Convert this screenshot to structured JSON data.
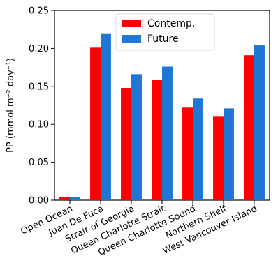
{
  "chart_data": {
    "type": "bar",
    "title": "",
    "xlabel": "",
    "ylabel": "PP (mmol m⁻² day⁻¹)",
    "ylim": [
      0,
      0.25
    ],
    "yticks": [
      0.0,
      0.05,
      0.1,
      0.15,
      0.2,
      0.25
    ],
    "ytick_labels": [
      "0.00",
      "0.05",
      "0.10",
      "0.15",
      "0.20",
      "0.25"
    ],
    "grid": false,
    "legend_position": "top-center",
    "categories": [
      "Open Ocean",
      "Juan De Fuca",
      "Strait of Georgia",
      "Queen Charlotte Strait",
      "Queen Charlotte Sound",
      "Northern Shelf",
      "West Vancouver Island"
    ],
    "series": [
      {
        "name": "Contemp.",
        "color": "#ff0000",
        "values": [
          0.004,
          0.201,
          0.148,
          0.159,
          0.122,
          0.11,
          0.191
        ]
      },
      {
        "name": "Future",
        "color": "#1f77d4",
        "values": [
          0.004,
          0.219,
          0.166,
          0.176,
          0.134,
          0.121,
          0.204
        ]
      }
    ]
  }
}
